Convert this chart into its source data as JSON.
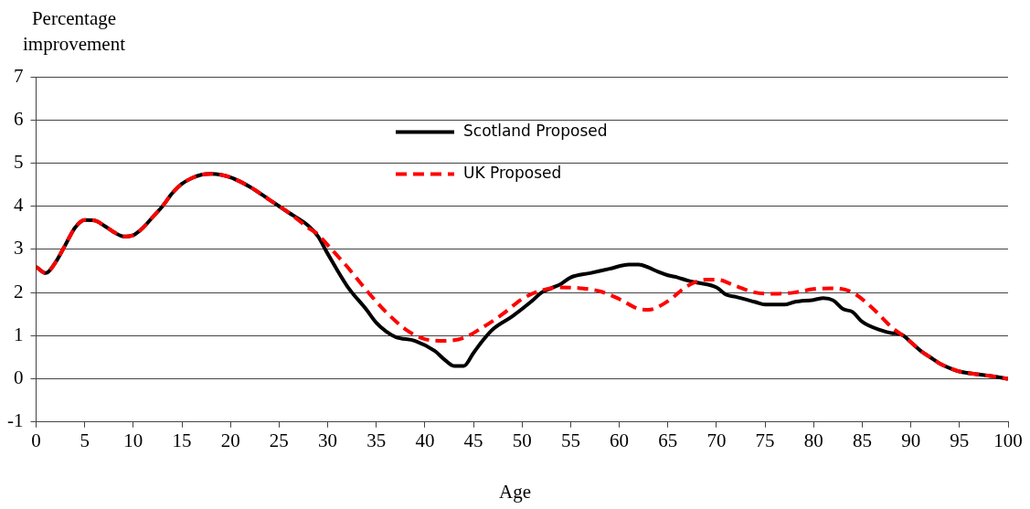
{
  "chart_data": {
    "type": "line",
    "xlabel": "Age",
    "ylabel": "Percentage improvement",
    "xlim": [
      0,
      100
    ],
    "xticks": [
      0,
      5,
      10,
      15,
      20,
      25,
      30,
      35,
      40,
      45,
      50,
      55,
      60,
      65,
      70,
      75,
      80,
      85,
      90,
      95,
      100
    ],
    "ylim": [
      -1,
      7
    ],
    "yticks": [
      -1,
      0,
      1,
      2,
      3,
      4,
      5,
      6,
      7
    ],
    "grid": "y",
    "legend": "top",
    "marker": "none",
    "series": [
      {
        "name": "Scotland Proposed",
        "color": "#000000",
        "line_style": "solid",
        "x": [
          0,
          1,
          2,
          3,
          4,
          5,
          6,
          7,
          8,
          9,
          10,
          11,
          12,
          13,
          14,
          15,
          16,
          17,
          18,
          19,
          20,
          22,
          24,
          26,
          28,
          29,
          30,
          32,
          34,
          35,
          36,
          37,
          39,
          41,
          42,
          43,
          44,
          45,
          46,
          47,
          49,
          51,
          52,
          53,
          54,
          55,
          57,
          59,
          61,
          62,
          63,
          64,
          65,
          66,
          67,
          68,
          70,
          71,
          72,
          74,
          75,
          77,
          78,
          80,
          81,
          82,
          83,
          84,
          85,
          87,
          88,
          89,
          90,
          91,
          92,
          93,
          94,
          95,
          97,
          99,
          100
        ],
        "values": [
          2.6,
          2.45,
          2.7,
          3.1,
          3.5,
          3.68,
          3.67,
          3.55,
          3.4,
          3.3,
          3.33,
          3.5,
          3.75,
          4.0,
          4.3,
          4.52,
          4.65,
          4.73,
          4.75,
          4.73,
          4.67,
          4.45,
          4.15,
          3.85,
          3.55,
          3.3,
          2.9,
          2.15,
          1.6,
          1.3,
          1.1,
          0.97,
          0.88,
          0.65,
          0.45,
          0.3,
          0.3,
          0.6,
          0.9,
          1.15,
          1.45,
          1.8,
          2.0,
          2.1,
          2.2,
          2.35,
          2.45,
          2.55,
          2.65,
          2.65,
          2.58,
          2.48,
          2.4,
          2.35,
          2.28,
          2.23,
          2.12,
          1.95,
          1.9,
          1.78,
          1.72,
          1.72,
          1.78,
          1.83,
          1.87,
          1.82,
          1.62,
          1.55,
          1.32,
          1.12,
          1.06,
          1.03,
          0.85,
          0.65,
          0.5,
          0.35,
          0.25,
          0.17,
          0.1,
          0.04,
          0.0
        ]
      },
      {
        "name": "UK Proposed",
        "color": "#ff0000",
        "line_style": "dashed",
        "x": [
          0,
          1,
          2,
          3,
          4,
          5,
          6,
          7,
          8,
          9,
          10,
          11,
          12,
          13,
          14,
          15,
          16,
          17,
          18,
          19,
          20,
          22,
          24,
          26,
          28,
          29,
          30,
          32,
          34,
          36,
          38,
          40,
          42,
          44,
          46,
          48,
          50,
          52,
          54,
          56,
          58,
          60,
          62,
          63,
          65,
          67,
          69,
          70,
          72,
          74,
          76,
          78,
          80,
          82,
          84,
          86,
          88,
          89,
          90,
          91,
          92,
          93,
          94,
          95,
          97,
          99,
          100
        ],
        "values": [
          2.6,
          2.45,
          2.7,
          3.1,
          3.5,
          3.68,
          3.67,
          3.55,
          3.4,
          3.3,
          3.33,
          3.5,
          3.75,
          4.0,
          4.3,
          4.52,
          4.65,
          4.73,
          4.75,
          4.73,
          4.67,
          4.45,
          4.15,
          3.85,
          3.5,
          3.35,
          3.1,
          2.6,
          2.05,
          1.55,
          1.15,
          0.92,
          0.88,
          0.95,
          1.2,
          1.5,
          1.85,
          2.05,
          2.12,
          2.1,
          2.03,
          1.85,
          1.62,
          1.6,
          1.8,
          2.15,
          2.3,
          2.3,
          2.15,
          2.0,
          1.97,
          2.0,
          2.08,
          2.1,
          2.0,
          1.65,
          1.2,
          1.03,
          0.85,
          0.65,
          0.5,
          0.35,
          0.25,
          0.17,
          0.1,
          0.04,
          0.0
        ]
      }
    ]
  }
}
